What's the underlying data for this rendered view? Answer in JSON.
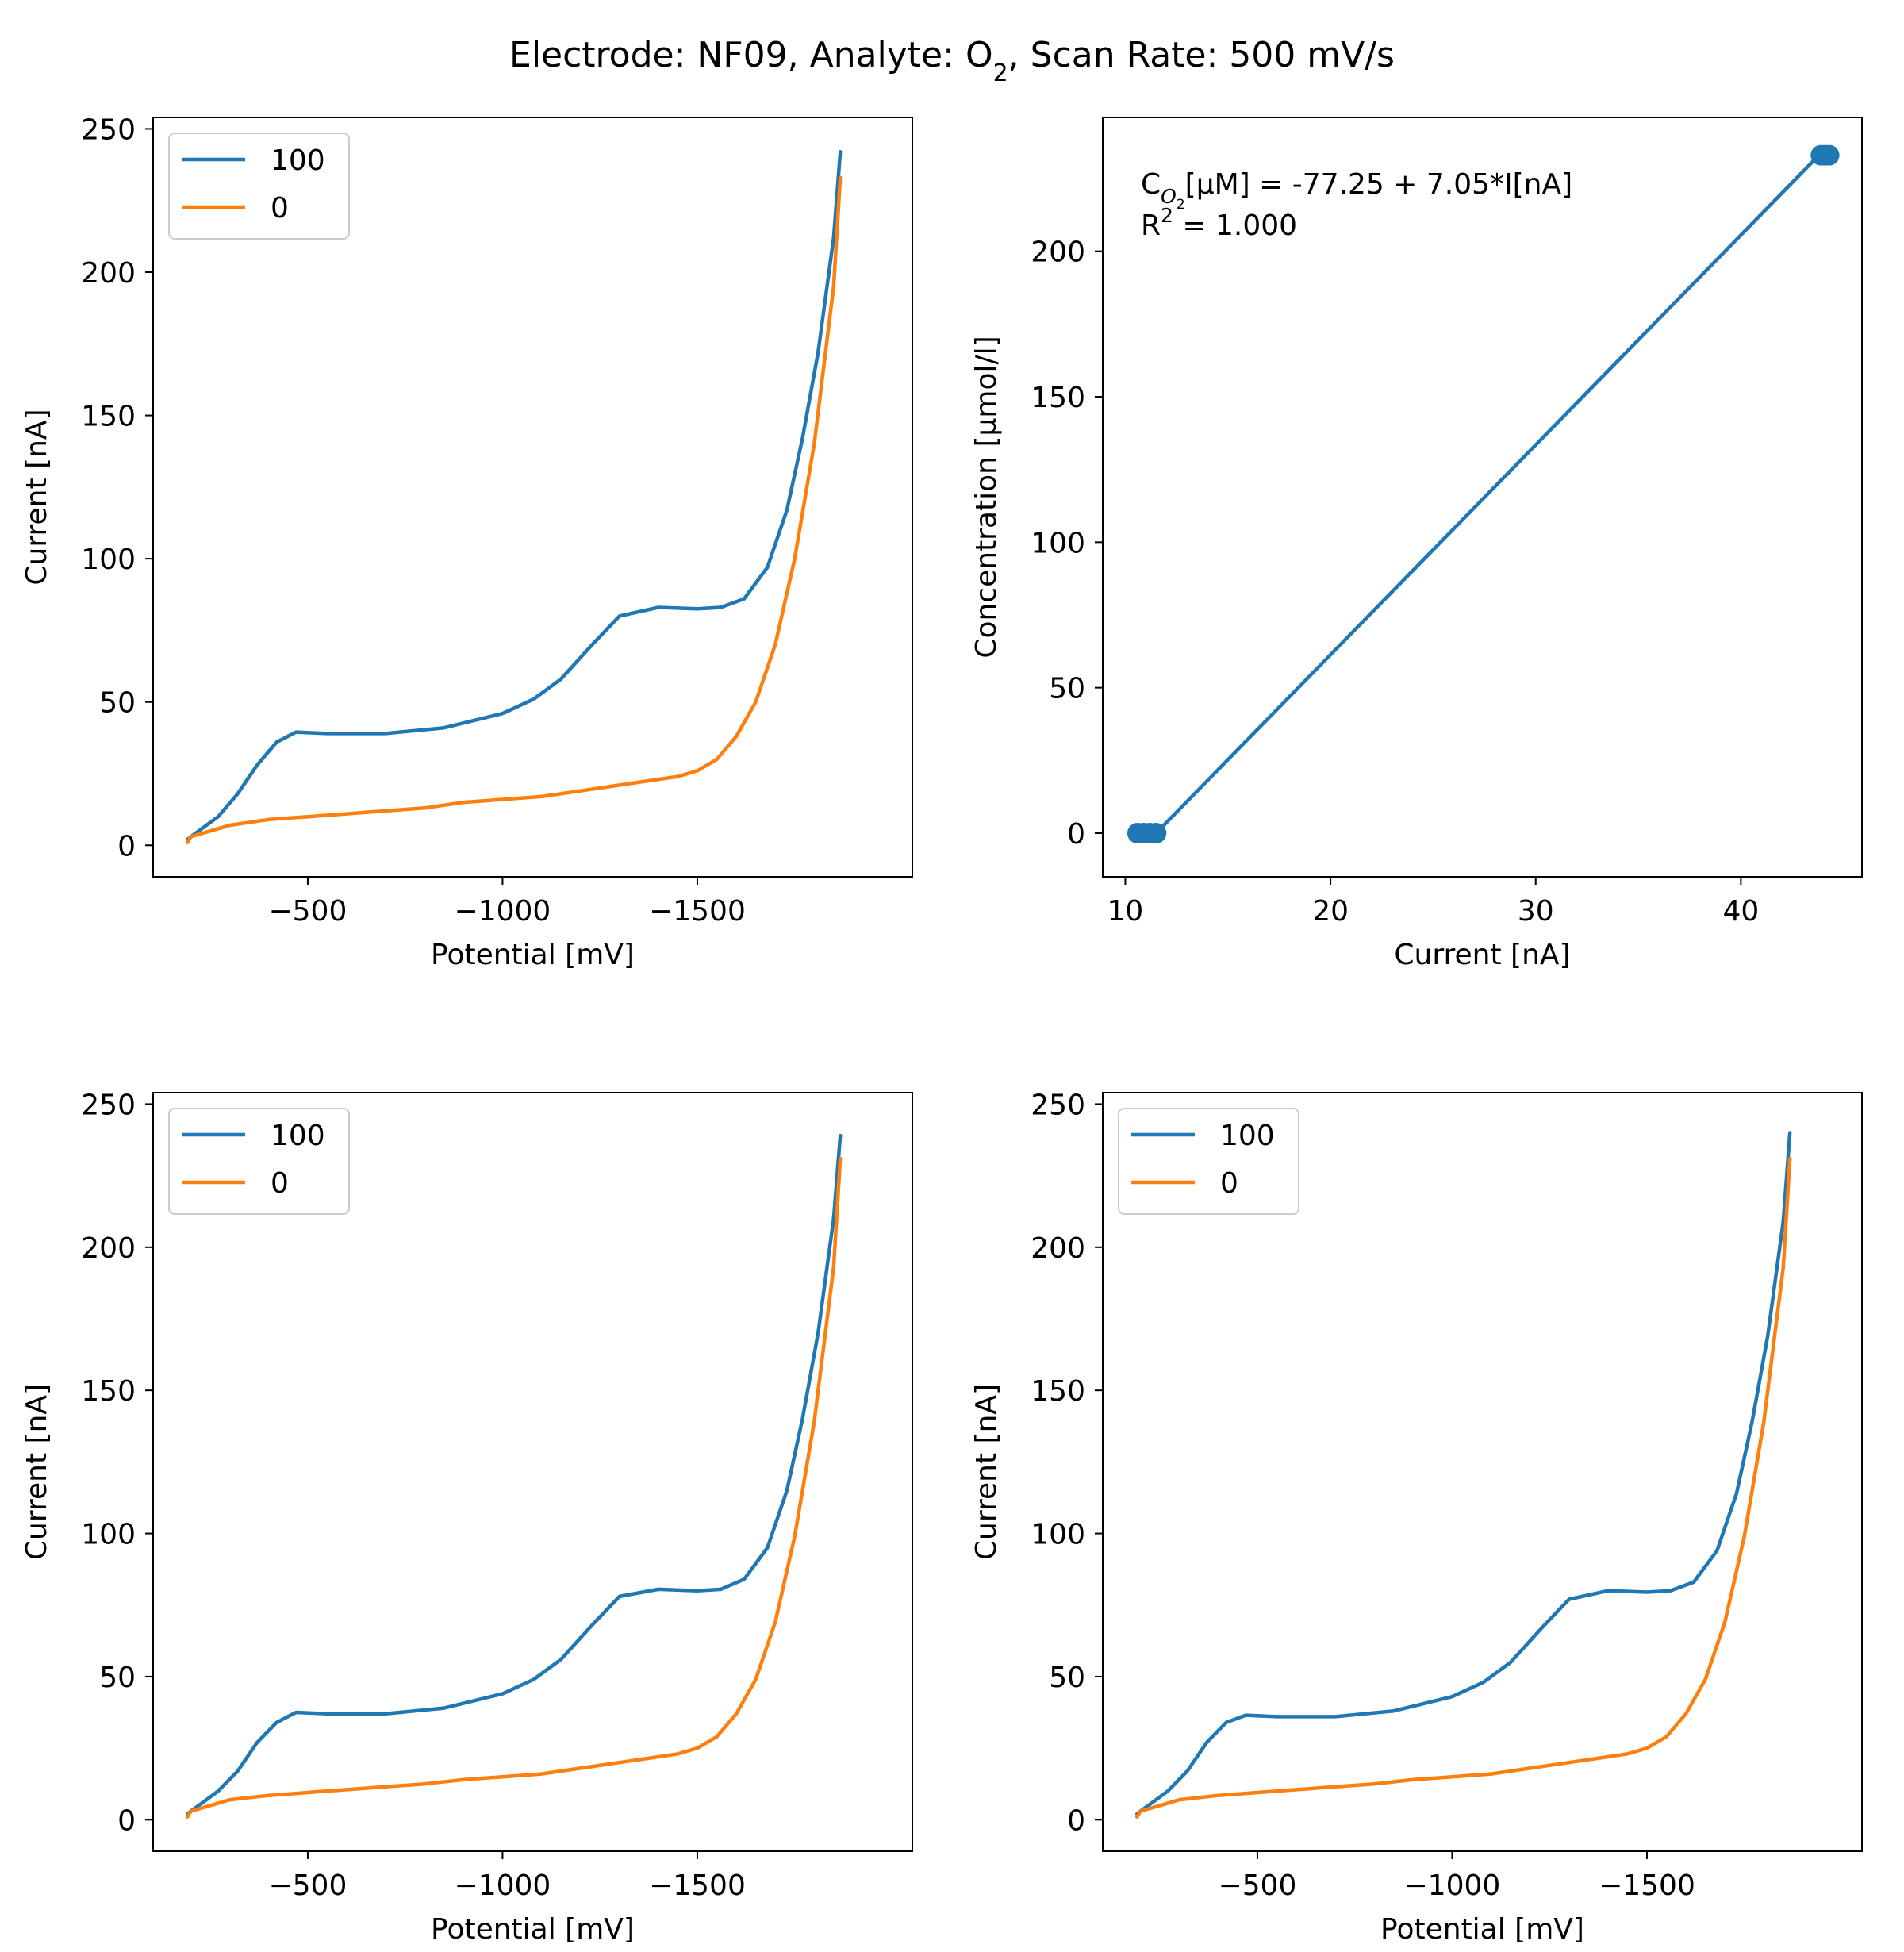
{
  "figure": {
    "title_parts": [
      "Electrode: NF09, Analyte: O",
      "2",
      ", Scan Rate: 500 mV/s"
    ]
  },
  "chart_data": [
    {
      "id": "cv-top-left",
      "type": "line",
      "xlabel": "Potential [mV]",
      "ylabel": "Current [nA]",
      "xlim": [
        -103,
        -2052
      ],
      "ylim": [
        -11,
        254
      ],
      "xticks": [
        -500,
        -1000,
        -1500
      ],
      "xtick_labels": [
        "−500",
        "−1000",
        "−1500"
      ],
      "yticks": [
        0,
        50,
        100,
        150,
        200,
        250
      ],
      "ytick_labels": [
        "0",
        "50",
        "100",
        "150",
        "200",
        "250"
      ],
      "legend": {
        "placement": "upper-left",
        "entries": [
          "100",
          "0"
        ]
      },
      "series": [
        {
          "name": "100",
          "color": "#1f77b4",
          "x": [
            -191,
            -200,
            -230,
            -270,
            -320,
            -370,
            -420,
            -470,
            -550,
            -700,
            -850,
            -1000,
            -1080,
            -1150,
            -1230,
            -1300,
            -1400,
            -1500,
            -1560,
            -1620,
            -1680,
            -1730,
            -1770,
            -1810,
            -1850,
            -1867
          ],
          "y": [
            2,
            3,
            6,
            10,
            18,
            28,
            36,
            39.5,
            39,
            39,
            41,
            46,
            51,
            58,
            70,
            80,
            83,
            82.5,
            83,
            86,
            97,
            117,
            142,
            172,
            212,
            242
          ]
        },
        {
          "name": "0",
          "color": "#ff7f0e",
          "x": [
            -191,
            -200,
            -250,
            -300,
            -400,
            -500,
            -600,
            -700,
            -800,
            -900,
            -1000,
            -1100,
            -1200,
            -1300,
            -1400,
            -1450,
            -1500,
            -1550,
            -1600,
            -1650,
            -1700,
            -1750,
            -1800,
            -1850,
            -1867
          ],
          "y": [
            1,
            3,
            5,
            7,
            9,
            10,
            11,
            12,
            13,
            15,
            16,
            17,
            19,
            21,
            23,
            24,
            26,
            30,
            38,
            50,
            70,
            100,
            140,
            195,
            233
          ]
        }
      ]
    },
    {
      "id": "calibration",
      "type": "scatter",
      "xlabel": "Current [nA]",
      "ylabel": "Concentration [μmol/l]",
      "xlim": [
        8.9,
        45.9
      ],
      "ylim": [
        -15,
        246
      ],
      "xticks": [
        10,
        20,
        30,
        40
      ],
      "xtick_labels": [
        "10",
        "20",
        "30",
        "40"
      ],
      "yticks": [
        0,
        50,
        100,
        150,
        200
      ],
      "ytick_labels": [
        "0",
        "50",
        "100",
        "150",
        "200"
      ],
      "annotation": {
        "line1_parts": [
          "C",
          "O",
          "2",
          "[μM] = -77.25 + 7.05*I[nA]"
        ],
        "line2_parts": [
          "R",
          "2",
          " = 1.000"
        ]
      },
      "fit_line": {
        "x": [
          11.5,
          43.8
        ],
        "y": [
          0,
          233
        ]
      },
      "series": [
        {
          "color": "#1f77b4",
          "x": [
            10.6,
            10.9,
            11.2,
            11.5,
            43.9,
            44.1,
            44.3
          ],
          "y": [
            0,
            0,
            0,
            0,
            233,
            233,
            233
          ]
        }
      ]
    },
    {
      "id": "cv-bottom-left",
      "type": "line",
      "xlabel": "Potential [mV]",
      "ylabel": "Current [nA]",
      "xlim": [
        -103,
        -2052
      ],
      "ylim": [
        -11,
        254
      ],
      "xticks": [
        -500,
        -1000,
        -1500
      ],
      "xtick_labels": [
        "−500",
        "−1000",
        "−1500"
      ],
      "yticks": [
        0,
        50,
        100,
        150,
        200,
        250
      ],
      "ytick_labels": [
        "0",
        "50",
        "100",
        "150",
        "200",
        "250"
      ],
      "legend": {
        "placement": "upper-left",
        "entries": [
          "100",
          "0"
        ]
      },
      "series": [
        {
          "name": "100",
          "color": "#1f77b4",
          "x": [
            -191,
            -200,
            -230,
            -270,
            -320,
            -370,
            -420,
            -470,
            -550,
            -700,
            -850,
            -1000,
            -1080,
            -1150,
            -1230,
            -1300,
            -1400,
            -1500,
            -1560,
            -1620,
            -1680,
            -1730,
            -1770,
            -1810,
            -1850,
            -1867
          ],
          "y": [
            2,
            3,
            6,
            10,
            17,
            27,
            34,
            37.5,
            37,
            37,
            39,
            44,
            49,
            56,
            68,
            78,
            80.5,
            80,
            80.5,
            84,
            95,
            115,
            140,
            170,
            210,
            239
          ]
        },
        {
          "name": "0",
          "color": "#ff7f0e",
          "x": [
            -191,
            -200,
            -250,
            -300,
            -400,
            -500,
            -600,
            -700,
            -800,
            -900,
            -1000,
            -1100,
            -1200,
            -1300,
            -1400,
            -1450,
            -1500,
            -1550,
            -1600,
            -1650,
            -1700,
            -1750,
            -1800,
            -1850,
            -1867
          ],
          "y": [
            1,
            3,
            5,
            7,
            8.5,
            9.5,
            10.5,
            11.5,
            12.5,
            14,
            15,
            16,
            18,
            20,
            22,
            23,
            25,
            29,
            37,
            49,
            69,
            99,
            139,
            193,
            231
          ]
        }
      ]
    },
    {
      "id": "cv-bottom-right",
      "type": "line",
      "xlabel": "Potential [mV]",
      "ylabel": "Current [nA]",
      "xlim": [
        -103,
        -2052
      ],
      "ylim": [
        -11,
        254
      ],
      "xticks": [
        -500,
        -1000,
        -1500
      ],
      "xtick_labels": [
        "−500",
        "−1000",
        "−1500"
      ],
      "yticks": [
        0,
        50,
        100,
        150,
        200,
        250
      ],
      "ytick_labels": [
        "0",
        "50",
        "100",
        "150",
        "200",
        "250"
      ],
      "legend": {
        "placement": "upper-left",
        "entries": [
          "100",
          "0"
        ]
      },
      "series": [
        {
          "name": "100",
          "color": "#1f77b4",
          "x": [
            -191,
            -200,
            -230,
            -270,
            -320,
            -370,
            -420,
            -470,
            -550,
            -700,
            -850,
            -1000,
            -1080,
            -1150,
            -1230,
            -1300,
            -1400,
            -1500,
            -1560,
            -1620,
            -1680,
            -1730,
            -1770,
            -1810,
            -1850,
            -1867
          ],
          "y": [
            2,
            3,
            6,
            10,
            17,
            27,
            34,
            36.5,
            36,
            36,
            38,
            43,
            48,
            55,
            67,
            77,
            80,
            79.5,
            80,
            83,
            94,
            114,
            139,
            169,
            209,
            240
          ]
        },
        {
          "name": "0",
          "color": "#ff7f0e",
          "x": [
            -191,
            -200,
            -250,
            -300,
            -400,
            -500,
            -600,
            -700,
            -800,
            -900,
            -1000,
            -1100,
            -1200,
            -1300,
            -1400,
            -1450,
            -1500,
            -1550,
            -1600,
            -1650,
            -1700,
            -1750,
            -1800,
            -1850,
            -1867
          ],
          "y": [
            1,
            3,
            5,
            7,
            8.5,
            9.5,
            10.5,
            11.5,
            12.5,
            14,
            15,
            16,
            18,
            20,
            22,
            23,
            25,
            29,
            37,
            49,
            69,
            99,
            139,
            193,
            231
          ]
        }
      ]
    }
  ]
}
